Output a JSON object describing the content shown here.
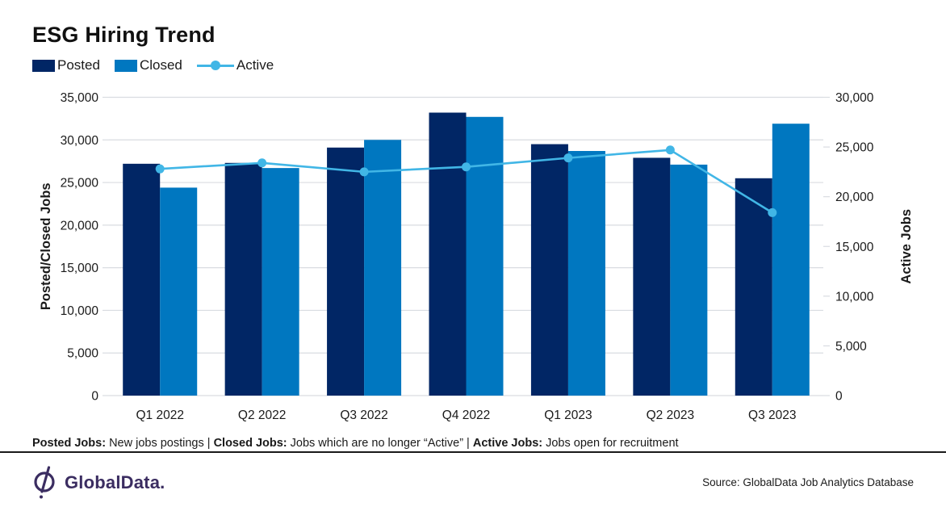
{
  "title": "ESG Hiring Trend",
  "legend": [
    {
      "label": "Posted",
      "marker": "bar",
      "color": "#012665"
    },
    {
      "label": "Closed",
      "marker": "bar",
      "color": "#0077C0"
    },
    {
      "label": "Active",
      "marker": "line",
      "color": "#41B6E6"
    }
  ],
  "chart_data": {
    "type": "bar+line",
    "title": "ESG Hiring Trend",
    "categories": [
      "Q1 2022",
      "Q2 2022",
      "Q3 2022",
      "Q4 2022",
      "Q1 2023",
      "Q2 2023",
      "Q3 2023"
    ],
    "series": [
      {
        "name": "Posted",
        "type": "bar",
        "axis": "left",
        "color": "#012665",
        "values": [
          27200,
          27300,
          29100,
          33200,
          29500,
          27900,
          25500
        ]
      },
      {
        "name": "Closed",
        "type": "bar",
        "axis": "left",
        "color": "#0077C0",
        "values": [
          24400,
          26700,
          30000,
          32700,
          28700,
          27100,
          31900
        ]
      },
      {
        "name": "Active",
        "type": "line",
        "axis": "right",
        "color": "#41B6E6",
        "values": [
          22800,
          23400,
          22500,
          23000,
          23900,
          24700,
          18400
        ]
      }
    ],
    "left_axis": {
      "label": "Posted/Closed Jobs",
      "min": 0,
      "max": 35000,
      "step": 5000,
      "tick_labels": [
        "0",
        "5,000",
        "10,000",
        "15,000",
        "20,000",
        "25,000",
        "30,000",
        "35,000"
      ]
    },
    "right_axis": {
      "label": "Active Jobs",
      "min": 0,
      "max": 30000,
      "step": 5000,
      "tick_labels": [
        "0",
        "5,000",
        "10,000",
        "15,000",
        "20,000",
        "25,000",
        "30,000"
      ]
    },
    "grid": true,
    "legend_position": "top-left",
    "gridline_color": "#D9DCE1"
  },
  "footnote": {
    "segments": [
      {
        "text": "Posted Jobs:",
        "bold": true
      },
      {
        "text": " New jobs postings | ",
        "bold": false
      },
      {
        "text": "Closed Jobs:",
        "bold": true
      },
      {
        "text": " Jobs which are no longer “Active” | ",
        "bold": false
      },
      {
        "text": "Active Jobs:",
        "bold": true
      },
      {
        "text": " Jobs open for recruitment",
        "bold": false
      }
    ]
  },
  "footer": {
    "logo_text": "GlobalData.",
    "logo_color": "#3B2D61",
    "source": "Source: GlobalData Job Analytics Database"
  },
  "colors": {
    "posted_bar": "#012665",
    "closed_bar": "#0077C0",
    "active_line": "#41B6E6",
    "gridline": "#D9DCE1",
    "text": "#1a1a1a",
    "divider": "#1a1a1a"
  }
}
